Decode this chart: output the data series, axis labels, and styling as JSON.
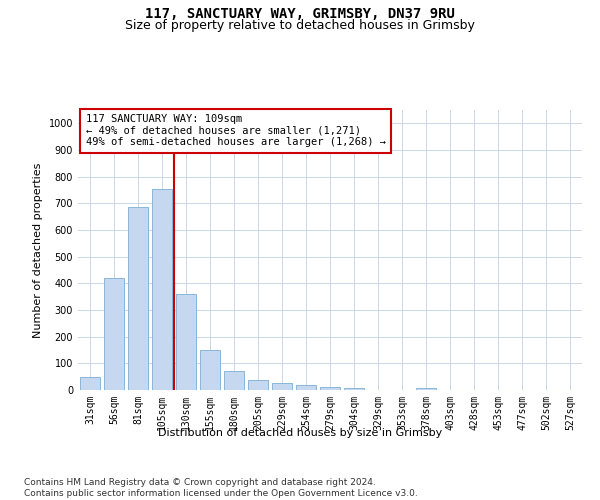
{
  "title": "117, SANCTUARY WAY, GRIMSBY, DN37 9RU",
  "subtitle": "Size of property relative to detached houses in Grimsby",
  "xlabel": "Distribution of detached houses by size in Grimsby",
  "ylabel": "Number of detached properties",
  "categories": [
    "31sqm",
    "56sqm",
    "81sqm",
    "105sqm",
    "130sqm",
    "155sqm",
    "180sqm",
    "205sqm",
    "229sqm",
    "254sqm",
    "279sqm",
    "304sqm",
    "329sqm",
    "353sqm",
    "378sqm",
    "403sqm",
    "428sqm",
    "453sqm",
    "477sqm",
    "502sqm",
    "527sqm"
  ],
  "values": [
    48,
    420,
    685,
    755,
    360,
    150,
    70,
    37,
    26,
    17,
    13,
    9,
    0,
    0,
    8,
    0,
    0,
    0,
    0,
    0,
    0
  ],
  "bar_color": "#c5d8f0",
  "bar_edge_color": "#7bafd4",
  "vline_color": "#cc0000",
  "annotation_text": "117 SANCTUARY WAY: 109sqm\n← 49% of detached houses are smaller (1,271)\n49% of semi-detached houses are larger (1,268) →",
  "annotation_box_color": "#ffffff",
  "annotation_box_edge": "#cc0000",
  "ylim": [
    0,
    1050
  ],
  "yticks": [
    0,
    100,
    200,
    300,
    400,
    500,
    600,
    700,
    800,
    900,
    1000
  ],
  "footer": "Contains HM Land Registry data © Crown copyright and database right 2024.\nContains public sector information licensed under the Open Government Licence v3.0.",
  "bg_color": "#ffffff",
  "grid_color": "#c8d8e8",
  "title_fontsize": 10,
  "subtitle_fontsize": 9,
  "axis_label_fontsize": 8,
  "tick_fontsize": 7,
  "annotation_fontsize": 7.5,
  "footer_fontsize": 6.5
}
